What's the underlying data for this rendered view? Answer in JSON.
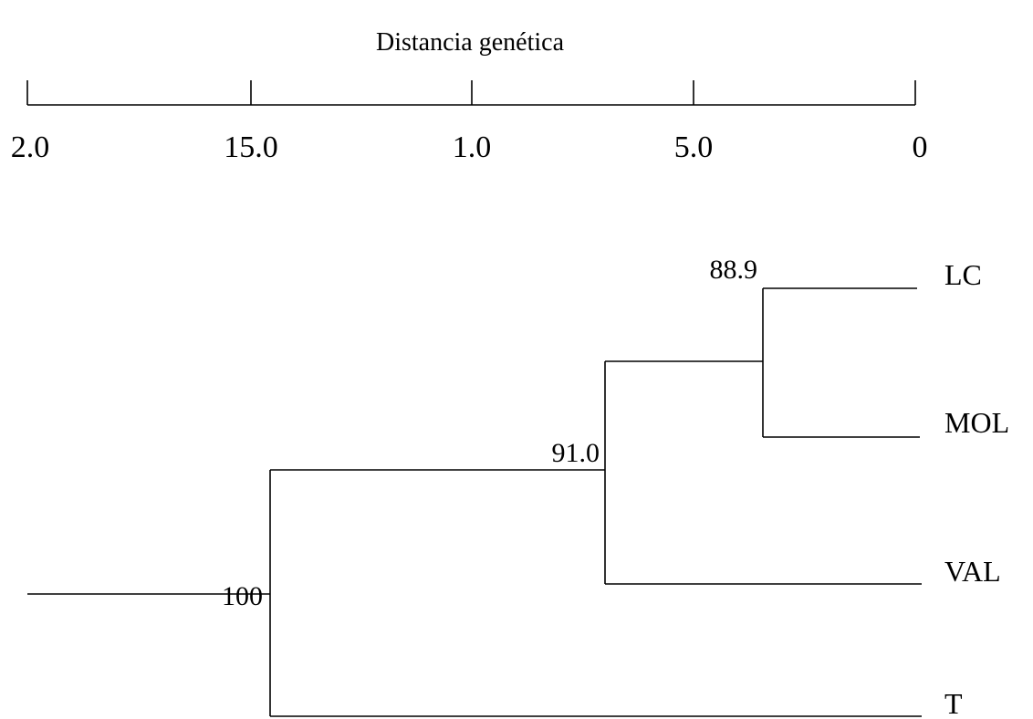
{
  "title": "Distancia genética",
  "axis": {
    "ticks": [
      "2.0",
      "15.0",
      "1.0",
      "5.0",
      "0"
    ]
  },
  "leaves": [
    "LC",
    "MOL",
    "VAL",
    "T"
  ],
  "nodes": [
    "88.9",
    "91.0",
    "100"
  ]
}
